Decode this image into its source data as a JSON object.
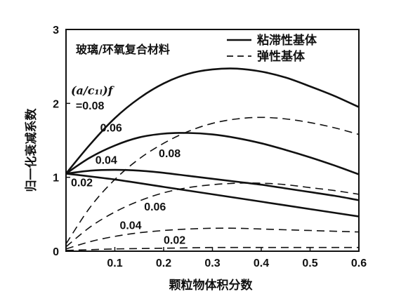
{
  "chart_data": {
    "type": "line",
    "title": "玻璃/环氧复合材料",
    "xlabel": "颗粒物体积分数",
    "ylabel": "归一化衰减系数",
    "xlim": [
      0,
      0.6
    ],
    "ylim": [
      0,
      3
    ],
    "x_ticks": [
      "0.1",
      "0.2",
      "0.3",
      "0.4",
      "0.5",
      "0.6"
    ],
    "y_ticks": [
      "0",
      "1",
      "2",
      "3"
    ],
    "grid": false,
    "legend_position": "top-right",
    "legend": [
      {
        "label": "粘滞性基体",
        "style": "solid"
      },
      {
        "label": "弹性基体",
        "style": "dashed"
      }
    ],
    "parameter_label": "(a/c_{1L})f",
    "series": [
      {
        "label": "=0.08",
        "matrix": "粘滞性基体",
        "style": "solid",
        "x": [
          0.0,
          0.05,
          0.1,
          0.15,
          0.2,
          0.25,
          0.3,
          0.35,
          0.4,
          0.45,
          0.5,
          0.55,
          0.6
        ],
        "y": [
          1.05,
          1.45,
          1.8,
          2.07,
          2.27,
          2.4,
          2.46,
          2.47,
          2.43,
          2.35,
          2.23,
          2.1,
          1.95
        ]
      },
      {
        "label": "0.06",
        "matrix": "粘滞性基体",
        "style": "solid",
        "x": [
          0.0,
          0.05,
          0.1,
          0.15,
          0.2,
          0.25,
          0.3,
          0.35,
          0.4,
          0.45,
          0.5,
          0.55,
          0.6
        ],
        "y": [
          1.05,
          1.27,
          1.43,
          1.54,
          1.59,
          1.6,
          1.58,
          1.53,
          1.46,
          1.37,
          1.27,
          1.16,
          1.04
        ]
      },
      {
        "label": "0.04",
        "matrix": "粘滞性基体",
        "style": "solid",
        "x": [
          0.0,
          0.05,
          0.1,
          0.15,
          0.2,
          0.25,
          0.3,
          0.35,
          0.4,
          0.45,
          0.5,
          0.55,
          0.6
        ],
        "y": [
          1.05,
          1.09,
          1.1,
          1.09,
          1.06,
          1.02,
          0.98,
          0.94,
          0.9,
          0.85,
          0.8,
          0.75,
          0.69
        ]
      },
      {
        "label": "0.02",
        "matrix": "粘滞性基体",
        "style": "solid",
        "x": [
          0.0,
          0.1,
          0.2,
          0.3,
          0.4,
          0.5,
          0.6
        ],
        "y": [
          1.05,
          0.97,
          0.87,
          0.77,
          0.67,
          0.57,
          0.47
        ]
      },
      {
        "label": "0.08",
        "matrix": "弹性基体",
        "style": "dashed",
        "x": [
          0.0,
          0.05,
          0.1,
          0.15,
          0.2,
          0.25,
          0.3,
          0.35,
          0.4,
          0.45,
          0.5,
          0.55,
          0.6
        ],
        "y": [
          0.1,
          0.6,
          0.97,
          1.25,
          1.46,
          1.62,
          1.73,
          1.79,
          1.81,
          1.79,
          1.74,
          1.67,
          1.58
        ]
      },
      {
        "label": "0.06",
        "matrix": "弹性基体",
        "style": "dashed",
        "x": [
          0.0,
          0.05,
          0.1,
          0.15,
          0.2,
          0.25,
          0.3,
          0.35,
          0.4,
          0.45,
          0.5,
          0.55,
          0.6
        ],
        "y": [
          0.06,
          0.33,
          0.53,
          0.68,
          0.79,
          0.86,
          0.9,
          0.92,
          0.92,
          0.9,
          0.86,
          0.82,
          0.77
        ]
      },
      {
        "label": "0.04",
        "matrix": "弹性基体",
        "style": "dashed",
        "x": [
          0.0,
          0.05,
          0.1,
          0.15,
          0.2,
          0.25,
          0.3,
          0.35,
          0.4,
          0.45,
          0.5,
          0.55,
          0.6
        ],
        "y": [
          0.03,
          0.13,
          0.2,
          0.25,
          0.28,
          0.3,
          0.31,
          0.31,
          0.3,
          0.29,
          0.28,
          0.27,
          0.26
        ]
      },
      {
        "label": "0.02",
        "matrix": "弹性基体",
        "style": "dashed",
        "x": [
          0.0,
          0.1,
          0.2,
          0.3,
          0.4,
          0.5,
          0.6
        ],
        "y": [
          0.01,
          0.03,
          0.04,
          0.05,
          0.05,
          0.05,
          0.05
        ]
      }
    ],
    "curve_labels": [
      {
        "series_index": 0,
        "anchor_x": 0.02,
        "anchor_y": 1.92
      },
      {
        "series_index": 1,
        "anchor_x": 0.07,
        "anchor_y": 1.62
      },
      {
        "series_index": 2,
        "anchor_x": 0.06,
        "anchor_y": 1.18
      },
      {
        "series_index": 3,
        "anchor_x": 0.01,
        "anchor_y": 0.88
      },
      {
        "series_index": 4,
        "anchor_x": 0.19,
        "anchor_y": 1.27
      },
      {
        "series_index": 5,
        "anchor_x": 0.16,
        "anchor_y": 0.55
      },
      {
        "series_index": 6,
        "anchor_x": 0.11,
        "anchor_y": 0.3
      },
      {
        "series_index": 7,
        "anchor_x": 0.2,
        "anchor_y": 0.1
      }
    ]
  }
}
